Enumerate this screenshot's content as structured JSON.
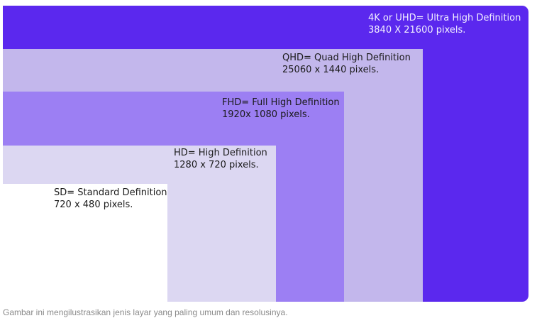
{
  "diagram": {
    "tiers": [
      {
        "id": "4k",
        "color": "#5b28ee",
        "title": "4K or UHD= Ultra High Definition",
        "resolution": "3840 X 21600 pixels."
      },
      {
        "id": "qhd",
        "color": "#c3b7ec",
        "title": "QHD= Quad High Definition",
        "resolution": "25060 x 1440 pixels."
      },
      {
        "id": "fhd",
        "color": "#9c7ff3",
        "title": "FHD= Full High Definition",
        "resolution": "1920x 1080 pixels."
      },
      {
        "id": "hd",
        "color": "#dcd7f2",
        "title": "HD= High Definition",
        "resolution": "1280 x 720 pixels."
      },
      {
        "id": "sd",
        "color": "#ffffff",
        "title": "SD= Standard Definition",
        "resolution": "720 x 480 pixels."
      }
    ]
  },
  "caption": "Gambar ini mengilustrasikan jenis layar yang paling umum dan resolusinya."
}
